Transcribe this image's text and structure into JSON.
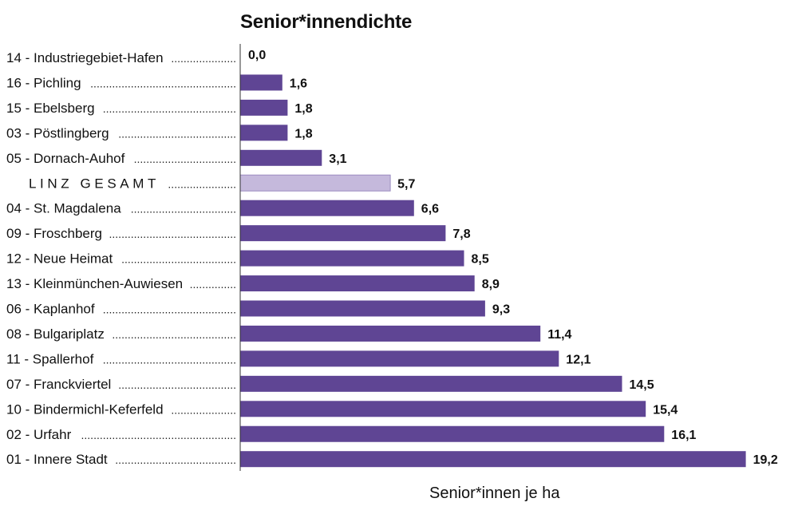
{
  "chart_data": {
    "type": "bar",
    "orientation": "horizontal",
    "title": "Senior*innendichte",
    "xlabel": "Senior*innen je ha",
    "ylabel": "",
    "xlim": [
      0,
      20
    ],
    "grid": false,
    "legend": "none",
    "categories": [
      "14 - Industriegebiet-Hafen",
      "16 - Pichling",
      "15 - Ebelsberg",
      "03 - Pöstlingberg",
      "05 - Dornach-Auhof",
      "L I N Z   G E S A M T",
      "04 - St. Magdalena",
      "09 - Froschberg",
      "12 - Neue Heimat",
      "13 - Kleinmünchen-Auwiesen",
      "06 - Kaplanhof",
      "08 - Bulgariplatz",
      "11 - Spallerhof",
      "07 - Franckviertel",
      "10 - Bindermichl-Keferfeld",
      "02 - Urfahr",
      "01 - Innere Stadt"
    ],
    "values": [
      0.0,
      1.6,
      1.8,
      1.8,
      3.1,
      5.7,
      6.6,
      7.8,
      8.5,
      8.9,
      9.3,
      11.4,
      12.1,
      14.5,
      15.4,
      16.1,
      19.2
    ],
    "value_labels": [
      "0,0",
      "1,6",
      "1,8",
      "1,8",
      "3,1",
      "5,7",
      "6,6",
      "7,8",
      "8,5",
      "8,9",
      "9,3",
      "11,4",
      "12,1",
      "14,5",
      "15,4",
      "16,1",
      "19,2"
    ],
    "highlight_index": 5,
    "colors": {
      "bar": "#5f4594",
      "highlight_bar": "#c5b9dc",
      "axis": "#333333"
    }
  }
}
